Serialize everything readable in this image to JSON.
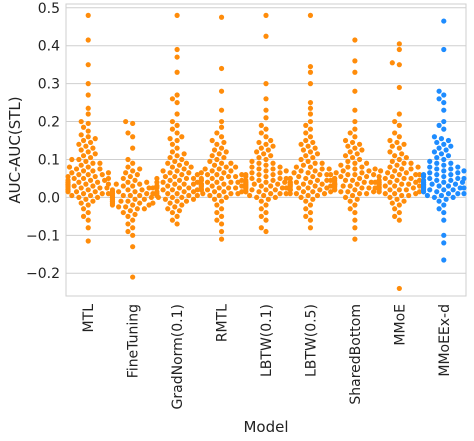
{
  "chart_data": {
    "type": "scatter",
    "subtype": "swarm",
    "xlabel": "Model",
    "ylabel": "AUC-AUC(STL)",
    "ylim": [
      -0.26,
      0.51
    ],
    "yticks": [
      -0.2,
      -0.1,
      0.0,
      0.1,
      0.2,
      0.3,
      0.4,
      0.5
    ],
    "ytick_labels": [
      "−0.2",
      "−0.1",
      "0.0",
      "0.1",
      "0.2",
      "0.3",
      "0.4",
      "0.5"
    ],
    "grid": "horizontal",
    "legend": "none",
    "colors": {
      "baseline": "#ff8c0a",
      "highlight": "#1e8cff",
      "grid": "#cfcfcf"
    },
    "categories": [
      "MTL",
      "FineTuning",
      "GradNorm(0.1)",
      "RMTL",
      "LBTW(0.1)",
      "LBTW(0.5)",
      "SharedBottom",
      "MMoE",
      "MMoEEx-d"
    ],
    "highlight_category": "MMoEEx-d",
    "series": [
      {
        "category": "MTL",
        "values": [
          0.48,
          0.415,
          0.35,
          0.3,
          0.27,
          0.235,
          0.22,
          0.2,
          0.195,
          0.185,
          0.175,
          0.165,
          0.16,
          0.155,
          0.15,
          0.145,
          0.14,
          0.135,
          0.13,
          0.125,
          0.12,
          0.115,
          0.11,
          0.105,
          0.1,
          0.1,
          0.095,
          0.09,
          0.09,
          0.085,
          0.08,
          0.08,
          0.075,
          0.075,
          0.07,
          0.07,
          0.065,
          0.065,
          0.06,
          0.06,
          0.06,
          0.055,
          0.055,
          0.05,
          0.05,
          0.05,
          0.045,
          0.045,
          0.045,
          0.04,
          0.04,
          0.04,
          0.04,
          0.035,
          0.035,
          0.035,
          0.035,
          0.03,
          0.03,
          0.03,
          0.03,
          0.03,
          0.025,
          0.025,
          0.025,
          0.025,
          0.02,
          0.02,
          0.02,
          0.02,
          0.015,
          0.015,
          0.015,
          0.01,
          0.01,
          0.01,
          0.005,
          0.005,
          0.0,
          0.0,
          -0.005,
          -0.01,
          -0.015,
          -0.02,
          -0.03,
          -0.04,
          -0.05,
          -0.06,
          -0.08,
          -0.115
        ]
      },
      {
        "category": "FineTuning",
        "values": [
          0.2,
          0.195,
          0.17,
          0.16,
          0.13,
          0.1,
          0.09,
          0.08,
          0.075,
          0.07,
          0.065,
          0.06,
          0.055,
          0.05,
          0.045,
          0.04,
          0.04,
          0.035,
          0.035,
          0.03,
          0.03,
          0.025,
          0.025,
          0.02,
          0.02,
          0.02,
          0.015,
          0.015,
          0.015,
          0.01,
          0.01,
          0.01,
          0.01,
          0.005,
          0.005,
          0.005,
          0.005,
          0.0,
          0.0,
          0.0,
          0.0,
          0.0,
          -0.005,
          -0.005,
          -0.005,
          -0.005,
          -0.01,
          -0.01,
          -0.01,
          -0.01,
          -0.015,
          -0.015,
          -0.015,
          -0.02,
          -0.02,
          -0.02,
          -0.025,
          -0.025,
          -0.03,
          -0.03,
          -0.035,
          -0.04,
          -0.045,
          -0.05,
          -0.06,
          -0.07,
          -0.08,
          -0.09,
          -0.1,
          -0.13,
          -0.21
        ]
      },
      {
        "category": "GradNorm(0.1)",
        "values": [
          0.48,
          0.39,
          0.37,
          0.33,
          0.27,
          0.26,
          0.25,
          0.22,
          0.2,
          0.19,
          0.18,
          0.17,
          0.16,
          0.155,
          0.15,
          0.14,
          0.13,
          0.12,
          0.115,
          0.11,
          0.105,
          0.1,
          0.095,
          0.09,
          0.09,
          0.085,
          0.08,
          0.08,
          0.075,
          0.07,
          0.07,
          0.065,
          0.065,
          0.06,
          0.06,
          0.055,
          0.055,
          0.05,
          0.05,
          0.05,
          0.045,
          0.045,
          0.04,
          0.04,
          0.04,
          0.035,
          0.035,
          0.035,
          0.03,
          0.03,
          0.03,
          0.025,
          0.025,
          0.025,
          0.02,
          0.02,
          0.02,
          0.015,
          0.015,
          0.015,
          0.01,
          0.01,
          0.01,
          0.005,
          0.005,
          0.005,
          0.0,
          0.0,
          0.0,
          -0.005,
          -0.005,
          -0.01,
          -0.01,
          -0.015,
          -0.02,
          -0.025,
          -0.03,
          -0.035,
          -0.04,
          -0.05,
          -0.06,
          -0.07
        ]
      },
      {
        "category": "RMTL",
        "values": [
          0.475,
          0.34,
          0.28,
          0.23,
          0.2,
          0.185,
          0.17,
          0.16,
          0.15,
          0.145,
          0.14,
          0.13,
          0.125,
          0.12,
          0.115,
          0.11,
          0.105,
          0.1,
          0.095,
          0.09,
          0.09,
          0.085,
          0.08,
          0.08,
          0.075,
          0.075,
          0.07,
          0.07,
          0.065,
          0.065,
          0.06,
          0.06,
          0.06,
          0.055,
          0.055,
          0.05,
          0.05,
          0.05,
          0.045,
          0.045,
          0.045,
          0.04,
          0.04,
          0.04,
          0.04,
          0.035,
          0.035,
          0.035,
          0.035,
          0.03,
          0.03,
          0.03,
          0.03,
          0.025,
          0.025,
          0.025,
          0.025,
          0.02,
          0.02,
          0.02,
          0.02,
          0.015,
          0.015,
          0.015,
          0.01,
          0.01,
          0.01,
          0.005,
          0.005,
          0.0,
          -0.005,
          -0.01,
          -0.02,
          -0.03,
          -0.04,
          -0.05,
          -0.06,
          -0.07,
          -0.09,
          -0.11
        ]
      },
      {
        "category": "LBTW(0.1)",
        "values": [
          0.48,
          0.425,
          0.3,
          0.26,
          0.23,
          0.21,
          0.19,
          0.18,
          0.17,
          0.16,
          0.15,
          0.145,
          0.14,
          0.135,
          0.13,
          0.125,
          0.12,
          0.115,
          0.11,
          0.105,
          0.1,
          0.095,
          0.09,
          0.09,
          0.085,
          0.08,
          0.08,
          0.075,
          0.075,
          0.07,
          0.07,
          0.065,
          0.065,
          0.06,
          0.06,
          0.06,
          0.055,
          0.055,
          0.05,
          0.05,
          0.05,
          0.045,
          0.045,
          0.045,
          0.04,
          0.04,
          0.04,
          0.04,
          0.035,
          0.035,
          0.035,
          0.035,
          0.03,
          0.03,
          0.03,
          0.03,
          0.025,
          0.025,
          0.025,
          0.025,
          0.02,
          0.02,
          0.02,
          0.02,
          0.015,
          0.015,
          0.015,
          0.01,
          0.01,
          0.01,
          0.005,
          0.005,
          0.0,
          0.0,
          -0.005,
          -0.01,
          -0.02,
          -0.03,
          -0.04,
          -0.05,
          -0.06,
          -0.08,
          -0.09
        ]
      },
      {
        "category": "LBTW(0.5)",
        "values": [
          0.48,
          0.345,
          0.33,
          0.3,
          0.25,
          0.235,
          0.22,
          0.2,
          0.19,
          0.18,
          0.17,
          0.16,
          0.15,
          0.145,
          0.14,
          0.135,
          0.13,
          0.125,
          0.12,
          0.115,
          0.11,
          0.105,
          0.1,
          0.095,
          0.09,
          0.09,
          0.085,
          0.08,
          0.08,
          0.075,
          0.075,
          0.07,
          0.07,
          0.065,
          0.065,
          0.06,
          0.06,
          0.06,
          0.055,
          0.055,
          0.05,
          0.05,
          0.05,
          0.045,
          0.045,
          0.045,
          0.04,
          0.04,
          0.04,
          0.04,
          0.035,
          0.035,
          0.035,
          0.035,
          0.03,
          0.03,
          0.03,
          0.03,
          0.025,
          0.025,
          0.025,
          0.025,
          0.02,
          0.02,
          0.02,
          0.02,
          0.015,
          0.015,
          0.015,
          0.01,
          0.01,
          0.01,
          0.005,
          0.005,
          0.0,
          -0.005,
          -0.01,
          -0.02,
          -0.03,
          -0.04,
          -0.05,
          -0.06,
          -0.08
        ]
      },
      {
        "category": "SharedBottom",
        "values": [
          0.415,
          0.36,
          0.33,
          0.28,
          0.23,
          0.2,
          0.18,
          0.17,
          0.16,
          0.15,
          0.145,
          0.14,
          0.135,
          0.13,
          0.125,
          0.12,
          0.115,
          0.11,
          0.105,
          0.1,
          0.095,
          0.09,
          0.09,
          0.085,
          0.08,
          0.08,
          0.075,
          0.075,
          0.07,
          0.07,
          0.065,
          0.065,
          0.06,
          0.06,
          0.06,
          0.055,
          0.055,
          0.05,
          0.05,
          0.05,
          0.045,
          0.045,
          0.045,
          0.04,
          0.04,
          0.04,
          0.04,
          0.035,
          0.035,
          0.035,
          0.035,
          0.03,
          0.03,
          0.03,
          0.03,
          0.025,
          0.025,
          0.025,
          0.025,
          0.02,
          0.02,
          0.02,
          0.015,
          0.015,
          0.015,
          0.01,
          0.01,
          0.005,
          0.0,
          -0.005,
          -0.01,
          -0.02,
          -0.03,
          -0.04,
          -0.06,
          -0.08,
          -0.11
        ]
      },
      {
        "category": "MMoE",
        "values": [
          0.405,
          0.39,
          0.355,
          0.35,
          0.29,
          0.22,
          0.2,
          0.19,
          0.17,
          0.16,
          0.15,
          0.145,
          0.14,
          0.135,
          0.13,
          0.12,
          0.115,
          0.11,
          0.105,
          0.1,
          0.095,
          0.09,
          0.09,
          0.085,
          0.08,
          0.08,
          0.075,
          0.075,
          0.07,
          0.07,
          0.065,
          0.065,
          0.06,
          0.06,
          0.06,
          0.055,
          0.055,
          0.05,
          0.05,
          0.05,
          0.045,
          0.045,
          0.045,
          0.04,
          0.04,
          0.04,
          0.04,
          0.035,
          0.035,
          0.035,
          0.035,
          0.03,
          0.03,
          0.03,
          0.03,
          0.025,
          0.025,
          0.025,
          0.025,
          0.02,
          0.02,
          0.02,
          0.02,
          0.015,
          0.015,
          0.015,
          0.01,
          0.01,
          0.01,
          0.005,
          0.005,
          0.0,
          -0.005,
          -0.01,
          -0.015,
          -0.02,
          -0.03,
          -0.04,
          -0.05,
          -0.06,
          -0.24
        ]
      },
      {
        "category": "MMoEEx-d",
        "values": [
          0.465,
          0.39,
          0.28,
          0.27,
          0.26,
          0.25,
          0.23,
          0.2,
          0.19,
          0.18,
          0.16,
          0.155,
          0.15,
          0.145,
          0.14,
          0.135,
          0.13,
          0.125,
          0.12,
          0.115,
          0.11,
          0.105,
          0.1,
          0.095,
          0.09,
          0.09,
          0.085,
          0.08,
          0.08,
          0.075,
          0.075,
          0.07,
          0.07,
          0.065,
          0.065,
          0.06,
          0.06,
          0.06,
          0.055,
          0.055,
          0.05,
          0.05,
          0.05,
          0.045,
          0.045,
          0.045,
          0.04,
          0.04,
          0.04,
          0.04,
          0.035,
          0.035,
          0.035,
          0.035,
          0.03,
          0.03,
          0.03,
          0.03,
          0.025,
          0.025,
          0.025,
          0.025,
          0.02,
          0.02,
          0.02,
          0.02,
          0.015,
          0.015,
          0.015,
          0.01,
          0.01,
          0.01,
          0.005,
          0.005,
          0.0,
          0.0,
          -0.005,
          -0.01,
          -0.02,
          -0.03,
          -0.04,
          -0.06,
          -0.1,
          -0.12,
          -0.165
        ]
      }
    ]
  }
}
